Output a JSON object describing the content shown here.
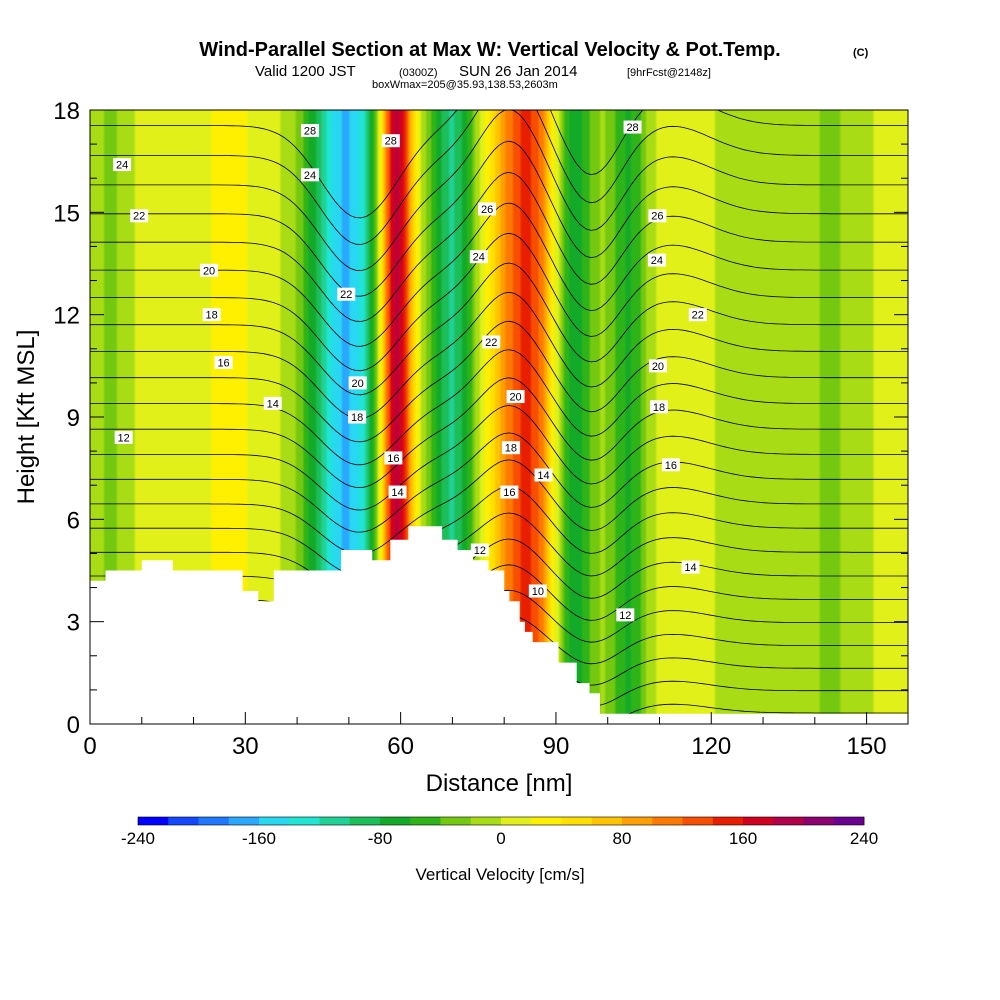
{
  "chart_data": {
    "type": "heatmap",
    "title": "Wind-Parallel Section at Max W: Vertical Velocity & Pot.Temp.",
    "title_mark": "(C)",
    "subtitle": {
      "pre": "Valid 1200 JST",
      "utc": "(0300Z)",
      "mid": "SUN 26 Jan 2014",
      "fcst": "[9hrFcst@2148z]"
    },
    "box_info": "boxWmax=205@35.93,138.53,2603m",
    "xlabel": "Distance [nm]",
    "ylabel": "Height [Kft MSL]",
    "xlim": [
      0,
      158
    ],
    "ylim": [
      0,
      18
    ],
    "x_ticks": [
      0,
      30,
      60,
      90,
      120,
      150
    ],
    "y_ticks": [
      0,
      3,
      6,
      9,
      12,
      15,
      18
    ],
    "colorbar": {
      "label": "Vertical Velocity [cm/s]",
      "ticks": [
        -240,
        -160,
        -80,
        0,
        80,
        160,
        240
      ],
      "min": -240,
      "max": 240,
      "colors": [
        "#0000ff",
        "#1448ff",
        "#1e78ff",
        "#2aa8ff",
        "#28d8f0",
        "#1ee6d2",
        "#20d296",
        "#1cbe5a",
        "#12aa28",
        "#2eb418",
        "#74c810",
        "#a8dc14",
        "#e2f01a",
        "#fff000",
        "#ffe000",
        "#ffc400",
        "#ffa000",
        "#ff7a00",
        "#f84e00",
        "#e81e00",
        "#d00020",
        "#b0004a",
        "#8c0070",
        "#6a0090"
      ]
    },
    "velocity_columns": [
      {
        "x": 4,
        "w": 3,
        "value": -30
      },
      {
        "x": 27,
        "w": 3,
        "value": 25
      },
      {
        "x": 49.5,
        "w": 5.2,
        "value": -170
      },
      {
        "x": 59,
        "w": 2.3,
        "value": 205
      },
      {
        "x": 70,
        "w": 3.2,
        "value": -110
      },
      {
        "x": 84.5,
        "w": 4.5,
        "value": 140
      },
      {
        "x": 93,
        "w": 3.2,
        "value": -95
      },
      {
        "x": 104,
        "w": 2.6,
        "value": -70
      },
      {
        "x": 127,
        "w": 4,
        "value": -25
      },
      {
        "x": 143,
        "w": 5,
        "value": -30
      }
    ],
    "theta_levels": [
      10,
      12,
      14,
      16,
      18,
      20,
      22,
      24,
      26,
      28
    ],
    "contour_labels": [
      {
        "x": 6.2,
        "y": 16.4,
        "text": "24"
      },
      {
        "x": 9.5,
        "y": 14.9,
        "text": "22"
      },
      {
        "x": 23,
        "y": 13.3,
        "text": "20"
      },
      {
        "x": 23.5,
        "y": 12,
        "text": "18"
      },
      {
        "x": 25.8,
        "y": 10.6,
        "text": "16"
      },
      {
        "x": 35.3,
        "y": 9.4,
        "text": "14"
      },
      {
        "x": 6.5,
        "y": 8.4,
        "text": "12"
      },
      {
        "x": 42.5,
        "y": 17.4,
        "text": "28"
      },
      {
        "x": 42.5,
        "y": 16.1,
        "text": "24"
      },
      {
        "x": 49.5,
        "y": 12.6,
        "text": "22"
      },
      {
        "x": 51.7,
        "y": 10,
        "text": "20"
      },
      {
        "x": 51.6,
        "y": 9,
        "text": "18"
      },
      {
        "x": 58.1,
        "y": 17.1,
        "text": "28"
      },
      {
        "x": 58.6,
        "y": 7.8,
        "text": "16"
      },
      {
        "x": 59.4,
        "y": 6.8,
        "text": "14"
      },
      {
        "x": 76.7,
        "y": 15.1,
        "text": "26"
      },
      {
        "x": 75.1,
        "y": 13.7,
        "text": "24"
      },
      {
        "x": 77.5,
        "y": 11.2,
        "text": "22"
      },
      {
        "x": 82.2,
        "y": 9.6,
        "text": "20"
      },
      {
        "x": 81.3,
        "y": 8.1,
        "text": "18"
      },
      {
        "x": 81,
        "y": 6.8,
        "text": "16"
      },
      {
        "x": 87.6,
        "y": 7.3,
        "text": "14"
      },
      {
        "x": 75.3,
        "y": 5.1,
        "text": "12"
      },
      {
        "x": 86.5,
        "y": 3.9,
        "text": "10"
      },
      {
        "x": 104.8,
        "y": 17.5,
        "text": "28"
      },
      {
        "x": 109.6,
        "y": 14.9,
        "text": "26"
      },
      {
        "x": 109.5,
        "y": 13.6,
        "text": "24"
      },
      {
        "x": 117.4,
        "y": 12,
        "text": "22"
      },
      {
        "x": 109.7,
        "y": 10.5,
        "text": "20"
      },
      {
        "x": 109.9,
        "y": 9.3,
        "text": "18"
      },
      {
        "x": 112.2,
        "y": 7.6,
        "text": "16"
      },
      {
        "x": 116,
        "y": 4.6,
        "text": "14"
      },
      {
        "x": 103.4,
        "y": 3.2,
        "text": "12"
      }
    ],
    "terrain": [
      [
        0,
        4.2
      ],
      [
        3,
        4.2
      ],
      [
        3,
        4.5
      ],
      [
        10,
        4.5
      ],
      [
        10,
        4.8
      ],
      [
        16,
        4.8
      ],
      [
        16,
        4.5
      ],
      [
        29.5,
        4.5
      ],
      [
        29.5,
        3.9
      ],
      [
        32.5,
        3.9
      ],
      [
        32.5,
        3.6
      ],
      [
        35.5,
        3.6
      ],
      [
        35.5,
        4.5
      ],
      [
        48.5,
        4.5
      ],
      [
        48.5,
        5.1
      ],
      [
        54.5,
        5.1
      ],
      [
        54.5,
        4.8
      ],
      [
        58,
        4.8
      ],
      [
        58,
        5.4
      ],
      [
        61.5,
        5.4
      ],
      [
        61.5,
        5.8
      ],
      [
        68,
        5.8
      ],
      [
        68,
        5.4
      ],
      [
        71,
        5.4
      ],
      [
        71,
        5.1
      ],
      [
        74,
        5.1
      ],
      [
        74,
        4.8
      ],
      [
        77,
        4.8
      ],
      [
        77,
        4.5
      ],
      [
        80,
        4.5
      ],
      [
        80,
        3.9
      ],
      [
        81,
        3.9
      ],
      [
        81,
        3.6
      ],
      [
        83,
        3.6
      ],
      [
        83,
        3.0
      ],
      [
        84,
        3.0
      ],
      [
        84,
        2.7
      ],
      [
        85.5,
        2.7
      ],
      [
        85.5,
        2.4
      ],
      [
        90.5,
        2.4
      ],
      [
        90.5,
        1.8
      ],
      [
        94,
        1.8
      ],
      [
        94,
        1.2
      ],
      [
        96.5,
        1.2
      ],
      [
        96.5,
        0.9
      ],
      [
        98.5,
        0.9
      ],
      [
        98.5,
        0.3
      ],
      [
        158,
        0.3
      ]
    ]
  }
}
